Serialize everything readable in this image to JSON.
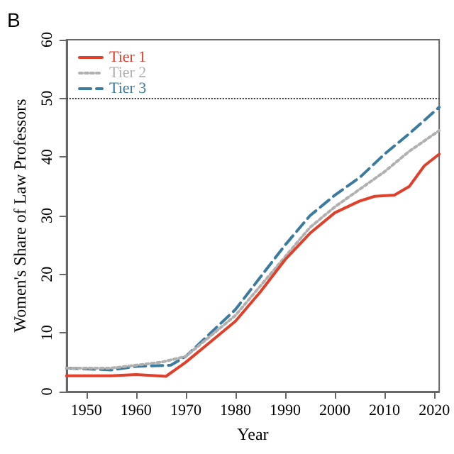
{
  "chart_data": {
    "type": "line",
    "title": "B",
    "xlabel": "Year",
    "ylabel": "Women's Share of Law Professors",
    "xlim": [
      1946,
      2021
    ],
    "xticks": [
      1950,
      1960,
      1970,
      1980,
      1990,
      2000,
      2010,
      2020
    ],
    "ylim": [
      0,
      60
    ],
    "yticks": [
      0,
      10,
      20,
      30,
      40,
      50,
      60
    ],
    "grid": false,
    "legend": "top left",
    "marker": "none",
    "ref_lines": [
      {
        "axis": "y",
        "value": 50,
        "line_style": "dotted",
        "color": "#333333"
      }
    ],
    "series": [
      {
        "name": "Tier 1",
        "color": "#e0402a",
        "line_style": "solid",
        "x": [
          1946,
          1950,
          1955,
          1960,
          1966,
          1970,
          1975,
          1980,
          1985,
          1990,
          1995,
          2000,
          2005,
          2008,
          2012,
          2015,
          2018,
          2021
        ],
        "values": [
          2.7,
          2.7,
          2.7,
          2.9,
          2.6,
          5,
          8.5,
          12,
          17,
          22.5,
          27,
          30.5,
          32.5,
          33.3,
          33.5,
          35,
          38.5,
          40.5
        ]
      },
      {
        "name": "Tier 2",
        "color": "#b0b0b0",
        "line_style": "dotted",
        "x": [
          1946,
          1955,
          1960,
          1965,
          1970,
          1975,
          1980,
          1985,
          1990,
          1995,
          2000,
          2005,
          2010,
          2015,
          2021
        ],
        "values": [
          4,
          4,
          4.5,
          5,
          6,
          9.5,
          13,
          18,
          23,
          28,
          31.5,
          34.5,
          37.5,
          41,
          44.5
        ]
      },
      {
        "name": "Tier 3",
        "color": "#3b7ba0",
        "line_style": "dashed",
        "x": [
          1946,
          1955,
          1960,
          1967,
          1970,
          1975,
          1980,
          1985,
          1990,
          1995,
          2000,
          2005,
          2010,
          2015,
          2021
        ],
        "values": [
          4,
          3.7,
          4.3,
          4.5,
          6,
          10,
          14,
          19.5,
          25,
          30,
          33.5,
          36.5,
          40.5,
          44,
          48.5
        ]
      }
    ]
  }
}
